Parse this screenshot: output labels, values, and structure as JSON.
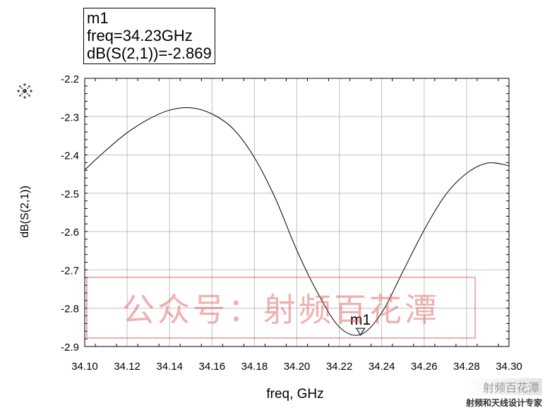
{
  "marker": {
    "name": "m1",
    "freq_text": "freq=34.23GHz",
    "value_text": "dB(S(2,1))=-2.869",
    "label": "m1"
  },
  "watermark": {
    "text": "公众号：射频百花潭",
    "footer_top": "射频百花潭",
    "footer_bottom": "射频和天线设计专家"
  },
  "icons": [
    "agilent-spark-icon",
    "marker-triangle-icon"
  ],
  "colors": {
    "trace": "#000000",
    "grid": "#c0c0c0",
    "watermark": "#dc5050"
  },
  "chart_data": {
    "type": "line",
    "title": "",
    "xlabel": "freq, GHz",
    "ylabel": "dB(S(2,1))",
    "xlim": [
      34.1,
      34.3
    ],
    "ylim": [
      -2.9,
      -2.2
    ],
    "grid": true,
    "x_ticks": [
      "34.10",
      "34.12",
      "34.14",
      "34.16",
      "34.18",
      "34.20",
      "34.22",
      "34.24",
      "34.26",
      "34.28",
      "34.30"
    ],
    "y_ticks": [
      "-2.2",
      "-2.3",
      "-2.4",
      "-2.5",
      "-2.6",
      "-2.7",
      "-2.8",
      "-2.9"
    ],
    "series": [
      {
        "x": [
          34.1,
          34.11,
          34.12,
          34.13,
          34.14,
          34.15,
          34.16,
          34.17,
          34.18,
          34.19,
          34.2,
          34.21,
          34.22,
          34.23,
          34.24,
          34.25,
          34.26,
          34.27,
          34.28,
          34.29,
          34.3
        ],
        "y": [
          -2.439,
          -2.388,
          -2.342,
          -2.307,
          -2.283,
          -2.277,
          -2.293,
          -2.332,
          -2.407,
          -2.515,
          -2.649,
          -2.762,
          -2.849,
          -2.869,
          -2.812,
          -2.704,
          -2.596,
          -2.505,
          -2.448,
          -2.421,
          -2.428
        ]
      }
    ],
    "markers": [
      {
        "name": "m1",
        "x": 34.23,
        "y": -2.869
      }
    ]
  }
}
